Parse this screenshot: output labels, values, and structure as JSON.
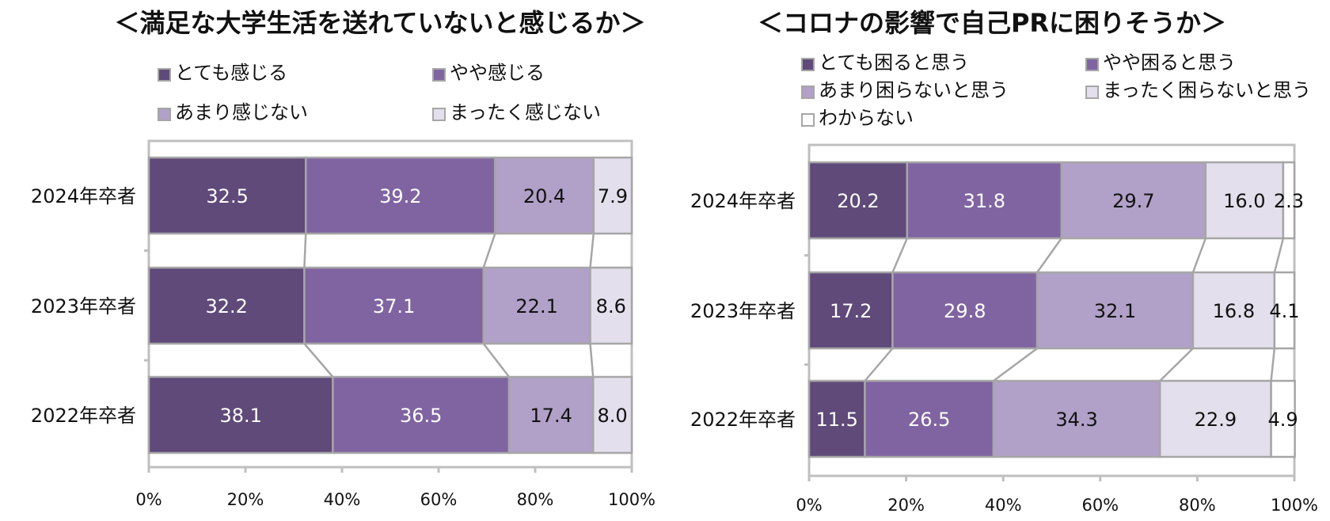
{
  "chart_data": [
    {
      "type": "bar",
      "orientation": "horizontal",
      "stacked": "100%",
      "title": "＜満足な大学生活を送れていないと感じるか＞",
      "categories": [
        "2024年卒者",
        "2023年卒者",
        "2022年卒者"
      ],
      "series": [
        {
          "name": "とても感じる",
          "color": "#5f4a7a",
          "values": [
            32.5,
            32.2,
            38.1
          ]
        },
        {
          "name": "やや感じる",
          "color": "#8064a2",
          "values": [
            39.2,
            37.1,
            36.5
          ]
        },
        {
          "name": "あまり感じない",
          "color": "#b1a0c7",
          "values": [
            20.4,
            22.1,
            17.4
          ]
        },
        {
          "name": "まったく感じない",
          "color": "#e4dfec",
          "values": [
            7.9,
            8.6,
            8.0
          ]
        }
      ],
      "x_ticks": [
        "0%",
        "20%",
        "40%",
        "60%",
        "80%",
        "100%"
      ],
      "xlim": [
        0,
        100
      ],
      "legend_position": "top",
      "series_lines": true
    },
    {
      "type": "bar",
      "orientation": "horizontal",
      "stacked": "100%",
      "title": "＜コロナの影響で自己PRに困りそうか＞",
      "categories": [
        "2024年卒者",
        "2023年卒者",
        "2022年卒者"
      ],
      "series": [
        {
          "name": "とても困ると思う",
          "color": "#5f4a7a",
          "values": [
            20.2,
            17.2,
            11.5
          ]
        },
        {
          "name": "やや困ると思う",
          "color": "#8064a2",
          "values": [
            31.8,
            29.8,
            26.5
          ]
        },
        {
          "name": "あまり困らないと思う",
          "color": "#b1a0c7",
          "values": [
            29.7,
            32.1,
            34.3
          ]
        },
        {
          "name": "まったく困らないと思う",
          "color": "#e4dfec",
          "values": [
            16.0,
            16.8,
            22.9
          ]
        },
        {
          "name": "わからない",
          "color": "#ffffff",
          "values": [
            2.3,
            4.1,
            4.9
          ]
        }
      ],
      "x_ticks": [
        "0%",
        "20%",
        "40%",
        "60%",
        "80%",
        "100%"
      ],
      "xlim": [
        0,
        100
      ],
      "legend_position": "top",
      "series_lines": true
    }
  ]
}
